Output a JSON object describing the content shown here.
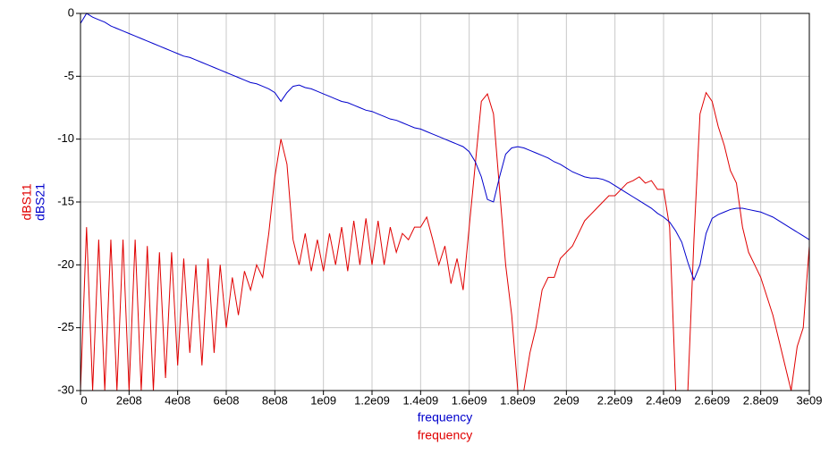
{
  "chart_data": {
    "type": "line",
    "x": [
      0,
      25000000,
      50000000,
      75000000,
      100000000,
      125000000,
      150000000,
      175000000,
      200000000,
      225000000,
      250000000,
      275000000,
      300000000,
      325000000,
      350000000,
      375000000,
      400000000,
      425000000,
      450000000,
      475000000,
      500000000,
      525000000,
      550000000,
      575000000,
      600000000,
      625000000,
      650000000,
      675000000,
      700000000,
      725000000,
      750000000,
      775000000,
      800000000,
      825000000,
      850000000,
      875000000,
      900000000,
      925000000,
      950000000,
      975000000,
      1000000000,
      1025000000,
      1050000000,
      1075000000,
      1100000000,
      1125000000,
      1150000000,
      1175000000,
      1200000000,
      1225000000,
      1250000000,
      1275000000,
      1300000000,
      1325000000,
      1350000000,
      1375000000,
      1400000000,
      1425000000,
      1450000000,
      1475000000,
      1500000000,
      1525000000,
      1550000000,
      1575000000,
      1600000000,
      1625000000,
      1650000000,
      1675000000,
      1700000000,
      1725000000,
      1750000000,
      1775000000,
      1800000000,
      1825000000,
      1850000000,
      1875000000,
      1900000000,
      1925000000,
      1950000000,
      1975000000,
      2000000000,
      2025000000,
      2050000000,
      2075000000,
      2100000000,
      2125000000,
      2150000000,
      2175000000,
      2200000000,
      2225000000,
      2250000000,
      2275000000,
      2300000000,
      2325000000,
      2350000000,
      2375000000,
      2400000000,
      2425000000,
      2450000000,
      2475000000,
      2500000000,
      2525000000,
      2550000000,
      2575000000,
      2600000000,
      2625000000,
      2650000000,
      2675000000,
      2700000000,
      2725000000,
      2750000000,
      2775000000,
      2800000000,
      2825000000,
      2850000000,
      2875000000,
      2900000000,
      2925000000,
      2950000000,
      2975000000,
      3000000000
    ],
    "series": [
      {
        "name": "dBS11",
        "x_label": "frequency",
        "color": "#e00000",
        "values": [
          -30,
          -17,
          -30,
          -18,
          -30,
          -18,
          -30,
          -18,
          -30,
          -18,
          -30,
          -18.5,
          -30,
          -19,
          -29,
          -19,
          -28,
          -19.5,
          -27,
          -20,
          -28,
          -19.5,
          -27,
          -20,
          -25,
          -21,
          -24,
          -20.5,
          -22,
          -20,
          -21,
          -17.5,
          -13,
          -10,
          -12,
          -18,
          -20,
          -17.5,
          -20.5,
          -18,
          -20.5,
          -17.5,
          -20,
          -17,
          -20.5,
          -16.5,
          -20,
          -16.3,
          -20,
          -16.5,
          -20,
          -17,
          -19,
          -17.5,
          -18,
          -17,
          -17,
          -16.2,
          -18,
          -20,
          -18.5,
          -21.5,
          -19.5,
          -22,
          -17,
          -12,
          -7,
          -6.4,
          -8,
          -14,
          -20,
          -24,
          -30,
          -30,
          -27,
          -25,
          -22,
          -21,
          -21,
          -19.5,
          -19,
          -18.5,
          -17.5,
          -16.5,
          -16,
          -15.5,
          -15,
          -14.5,
          -14.5,
          -14,
          -13.5,
          -13.3,
          -13,
          -13.5,
          -13.3,
          -14,
          -14,
          -17,
          -30,
          -30,
          -30,
          -18,
          -8,
          -6.3,
          -7,
          -9,
          -10.5,
          -12.5,
          -13.5,
          -17,
          -19,
          -20,
          -21,
          -22.5,
          -24,
          -26,
          -28,
          -30,
          -26.5,
          -25,
          -18.5
        ]
      },
      {
        "name": "dBS21",
        "x_label": "frequency",
        "color": "#0000cc",
        "values": [
          -0.8,
          0,
          -0.3,
          -0.5,
          -0.7,
          -1.0,
          -1.2,
          -1.4,
          -1.6,
          -1.8,
          -2.0,
          -2.2,
          -2.4,
          -2.6,
          -2.8,
          -3.0,
          -3.2,
          -3.4,
          -3.5,
          -3.7,
          -3.9,
          -4.1,
          -4.3,
          -4.5,
          -4.7,
          -4.9,
          -5.1,
          -5.3,
          -5.5,
          -5.6,
          -5.8,
          -6.0,
          -6.3,
          -7.0,
          -6.3,
          -5.8,
          -5.7,
          -5.9,
          -6.0,
          -6.2,
          -6.4,
          -6.6,
          -6.8,
          -7.0,
          -7.1,
          -7.3,
          -7.5,
          -7.7,
          -7.8,
          -8.0,
          -8.2,
          -8.4,
          -8.5,
          -8.7,
          -8.9,
          -9.1,
          -9.2,
          -9.4,
          -9.6,
          -9.8,
          -10.0,
          -10.2,
          -10.4,
          -10.6,
          -11.0,
          -11.8,
          -13.0,
          -14.8,
          -15.0,
          -13.0,
          -11.2,
          -10.7,
          -10.6,
          -10.7,
          -10.9,
          -11.1,
          -11.3,
          -11.5,
          -11.8,
          -12.0,
          -12.3,
          -12.6,
          -12.8,
          -13.0,
          -13.1,
          -13.1,
          -13.2,
          -13.4,
          -13.7,
          -14.0,
          -14.3,
          -14.6,
          -14.9,
          -15.2,
          -15.5,
          -15.9,
          -16.2,
          -16.6,
          -17.3,
          -18.2,
          -19.8,
          -21.2,
          -20.0,
          -17.5,
          -16.3,
          -16.0,
          -15.8,
          -15.6,
          -15.5,
          -15.5,
          -15.6,
          -15.7,
          -15.8,
          -16.0,
          -16.2,
          -16.5,
          -16.8,
          -17.1,
          -17.4,
          -17.7,
          -18.0
        ]
      }
    ],
    "xlim": [
      0,
      3000000000
    ],
    "xticks": [
      0,
      {
        "value": 200000000,
        "label": "2e08"
      },
      {
        "value": 400000000,
        "label": "4e08"
      },
      {
        "value": 600000000,
        "label": "6e08"
      },
      {
        "value": 800000000,
        "label": "8e08"
      },
      {
        "value": 1000000000,
        "label": "1e09"
      },
      {
        "value": 1200000000,
        "label": "1.2e09"
      },
      {
        "value": 1400000000,
        "label": "1.4e09"
      },
      {
        "value": 1600000000,
        "label": "1.6e09"
      },
      {
        "value": 1800000000,
        "label": "1.8e09"
      },
      {
        "value": 2000000000,
        "label": "2e09"
      },
      {
        "value": 2200000000,
        "label": "2.2e09"
      },
      {
        "value": 2400000000,
        "label": "2.4e09"
      },
      {
        "value": 2600000000,
        "label": "2.6e09"
      },
      {
        "value": 2800000000,
        "label": "2.8e09"
      },
      {
        "value": 3000000000,
        "label": "3e09"
      }
    ],
    "ylim": [
      -30,
      0
    ],
    "yticks": [
      0,
      -5,
      -10,
      -15,
      -20,
      -25,
      -30
    ],
    "grid": true
  }
}
